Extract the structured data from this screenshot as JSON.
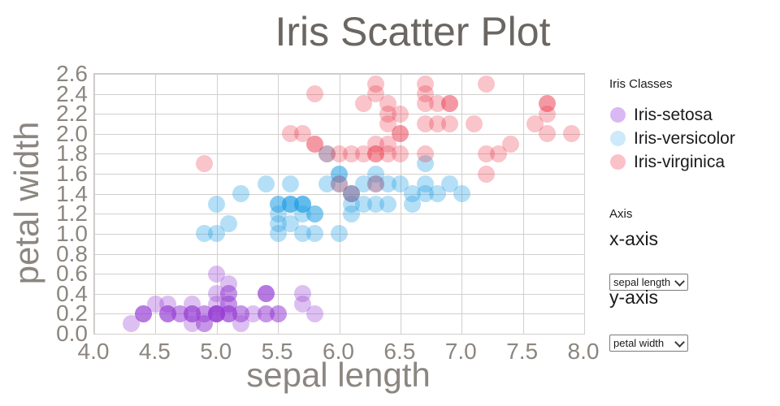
{
  "title": "Iris Scatter Plot",
  "legend": {
    "heading": "Iris Classes",
    "items": [
      {
        "id": "iris-setosa",
        "label": "Iris-setosa",
        "color": "#d9b8f4"
      },
      {
        "id": "iris-versicolor",
        "label": "Iris-versicolor",
        "color": "#cdeafa"
      },
      {
        "id": "iris-virginica",
        "label": "Iris-virginica",
        "color": "#fbc1c8"
      }
    ]
  },
  "controls": {
    "heading": "Axis",
    "x_axis_label": "x-axis",
    "x_select_value": "sepal length",
    "y_axis_label": "y-axis",
    "y_select_value": "petal width"
  },
  "chart_data": {
    "type": "scatter",
    "title": "Iris Scatter Plot",
    "xlabel": "sepal length",
    "ylabel": "petal width",
    "xlim": [
      4.0,
      8.0
    ],
    "ylim": [
      0.0,
      2.6
    ],
    "x_ticks": [
      4.0,
      4.5,
      5.0,
      5.5,
      6.0,
      6.5,
      7.0,
      7.5,
      8.0
    ],
    "y_ticks": [
      0.0,
      0.2,
      0.4,
      0.6,
      0.8,
      1.0,
      1.2,
      1.4,
      1.6,
      1.8,
      2.0,
      2.2,
      2.4,
      2.6
    ],
    "grid": true,
    "legend_position": "right",
    "marker_shape": "circle",
    "series": [
      {
        "name": "Iris-setosa",
        "id": "iris-setosa",
        "color": "rgba(148,60,210,0.32)",
        "points": [
          [
            5.1,
            0.2
          ],
          [
            4.9,
            0.2
          ],
          [
            4.7,
            0.2
          ],
          [
            4.6,
            0.2
          ],
          [
            5.0,
            0.2
          ],
          [
            5.4,
            0.4
          ],
          [
            4.6,
            0.3
          ],
          [
            5.0,
            0.2
          ],
          [
            4.4,
            0.2
          ],
          [
            4.9,
            0.1
          ],
          [
            5.4,
            0.2
          ],
          [
            4.8,
            0.2
          ],
          [
            4.8,
            0.1
          ],
          [
            4.3,
            0.1
          ],
          [
            5.8,
            0.2
          ],
          [
            5.7,
            0.4
          ],
          [
            5.4,
            0.4
          ],
          [
            5.1,
            0.3
          ],
          [
            5.7,
            0.3
          ],
          [
            5.1,
            0.3
          ],
          [
            5.4,
            0.2
          ],
          [
            5.1,
            0.4
          ],
          [
            4.6,
            0.2
          ],
          [
            5.1,
            0.5
          ],
          [
            4.8,
            0.2
          ],
          [
            5.0,
            0.2
          ],
          [
            5.0,
            0.4
          ],
          [
            5.2,
            0.2
          ],
          [
            5.2,
            0.2
          ],
          [
            4.7,
            0.2
          ],
          [
            4.8,
            0.2
          ],
          [
            5.4,
            0.4
          ],
          [
            5.2,
            0.1
          ],
          [
            5.5,
            0.2
          ],
          [
            4.9,
            0.2
          ],
          [
            5.0,
            0.2
          ],
          [
            5.5,
            0.2
          ],
          [
            4.9,
            0.1
          ],
          [
            4.4,
            0.2
          ],
          [
            5.1,
            0.2
          ],
          [
            5.0,
            0.3
          ],
          [
            4.5,
            0.3
          ],
          [
            4.4,
            0.2
          ],
          [
            5.0,
            0.6
          ],
          [
            5.1,
            0.4
          ],
          [
            4.8,
            0.3
          ],
          [
            5.1,
            0.2
          ],
          [
            4.6,
            0.2
          ],
          [
            5.3,
            0.2
          ],
          [
            5.0,
            0.2
          ]
        ]
      },
      {
        "name": "Iris-versicolor",
        "id": "iris-versicolor",
        "color": "rgba(30,158,228,0.33)",
        "points": [
          [
            7.0,
            1.4
          ],
          [
            6.4,
            1.5
          ],
          [
            6.9,
            1.5
          ],
          [
            5.5,
            1.3
          ],
          [
            6.5,
            1.5
          ],
          [
            5.7,
            1.3
          ],
          [
            6.3,
            1.6
          ],
          [
            4.9,
            1.0
          ],
          [
            6.6,
            1.3
          ],
          [
            5.2,
            1.4
          ],
          [
            5.0,
            1.0
          ],
          [
            5.9,
            1.5
          ],
          [
            6.0,
            1.0
          ],
          [
            6.1,
            1.4
          ],
          [
            5.6,
            1.3
          ],
          [
            6.7,
            1.4
          ],
          [
            5.6,
            1.5
          ],
          [
            5.8,
            1.0
          ],
          [
            6.2,
            1.5
          ],
          [
            5.6,
            1.1
          ],
          [
            5.9,
            1.8
          ],
          [
            6.1,
            1.3
          ],
          [
            6.3,
            1.5
          ],
          [
            6.1,
            1.2
          ],
          [
            6.4,
            1.3
          ],
          [
            6.6,
            1.4
          ],
          [
            6.8,
            1.4
          ],
          [
            6.7,
            1.7
          ],
          [
            6.0,
            1.5
          ],
          [
            5.7,
            1.0
          ],
          [
            5.5,
            1.1
          ],
          [
            5.5,
            1.0
          ],
          [
            5.8,
            1.2
          ],
          [
            6.0,
            1.6
          ],
          [
            5.4,
            1.5
          ],
          [
            6.0,
            1.6
          ],
          [
            6.7,
            1.5
          ],
          [
            6.3,
            1.3
          ],
          [
            5.6,
            1.3
          ],
          [
            5.5,
            1.3
          ],
          [
            5.5,
            1.2
          ],
          [
            6.1,
            1.4
          ],
          [
            5.8,
            1.2
          ],
          [
            5.0,
            1.3
          ],
          [
            5.6,
            1.3
          ],
          [
            5.7,
            1.2
          ],
          [
            5.7,
            1.3
          ],
          [
            6.2,
            1.3
          ],
          [
            5.1,
            1.1
          ],
          [
            5.7,
            1.3
          ]
        ]
      },
      {
        "name": "Iris-virginica",
        "id": "iris-virginica",
        "color": "rgba(232,42,66,0.28)",
        "points": [
          [
            6.3,
            2.5
          ],
          [
            5.8,
            1.9
          ],
          [
            7.1,
            2.1
          ],
          [
            6.3,
            1.8
          ],
          [
            6.5,
            2.2
          ],
          [
            7.6,
            2.1
          ],
          [
            4.9,
            1.7
          ],
          [
            7.3,
            1.8
          ],
          [
            6.7,
            1.8
          ],
          [
            7.2,
            2.5
          ],
          [
            6.5,
            2.0
          ],
          [
            6.4,
            1.9
          ],
          [
            6.8,
            2.1
          ],
          [
            5.7,
            2.0
          ],
          [
            5.8,
            2.4
          ],
          [
            6.4,
            2.3
          ],
          [
            6.5,
            1.8
          ],
          [
            7.7,
            2.2
          ],
          [
            7.7,
            2.3
          ],
          [
            6.0,
            1.5
          ],
          [
            6.9,
            2.3
          ],
          [
            5.6,
            2.0
          ],
          [
            7.7,
            2.0
          ],
          [
            6.3,
            1.8
          ],
          [
            6.7,
            2.1
          ],
          [
            7.2,
            1.8
          ],
          [
            6.2,
            1.8
          ],
          [
            6.1,
            1.8
          ],
          [
            6.4,
            2.1
          ],
          [
            7.2,
            1.6
          ],
          [
            7.4,
            1.9
          ],
          [
            7.9,
            2.0
          ],
          [
            6.4,
            2.2
          ],
          [
            6.3,
            1.5
          ],
          [
            6.1,
            1.4
          ],
          [
            7.7,
            2.3
          ],
          [
            6.3,
            2.4
          ],
          [
            6.4,
            1.8
          ],
          [
            6.0,
            1.8
          ],
          [
            6.9,
            2.1
          ],
          [
            6.7,
            2.4
          ],
          [
            6.9,
            2.3
          ],
          [
            5.8,
            1.9
          ],
          [
            6.8,
            2.3
          ],
          [
            6.7,
            2.5
          ],
          [
            6.7,
            2.3
          ],
          [
            6.3,
            1.9
          ],
          [
            6.5,
            2.0
          ],
          [
            6.2,
            2.3
          ],
          [
            5.9,
            1.8
          ]
        ]
      }
    ]
  }
}
